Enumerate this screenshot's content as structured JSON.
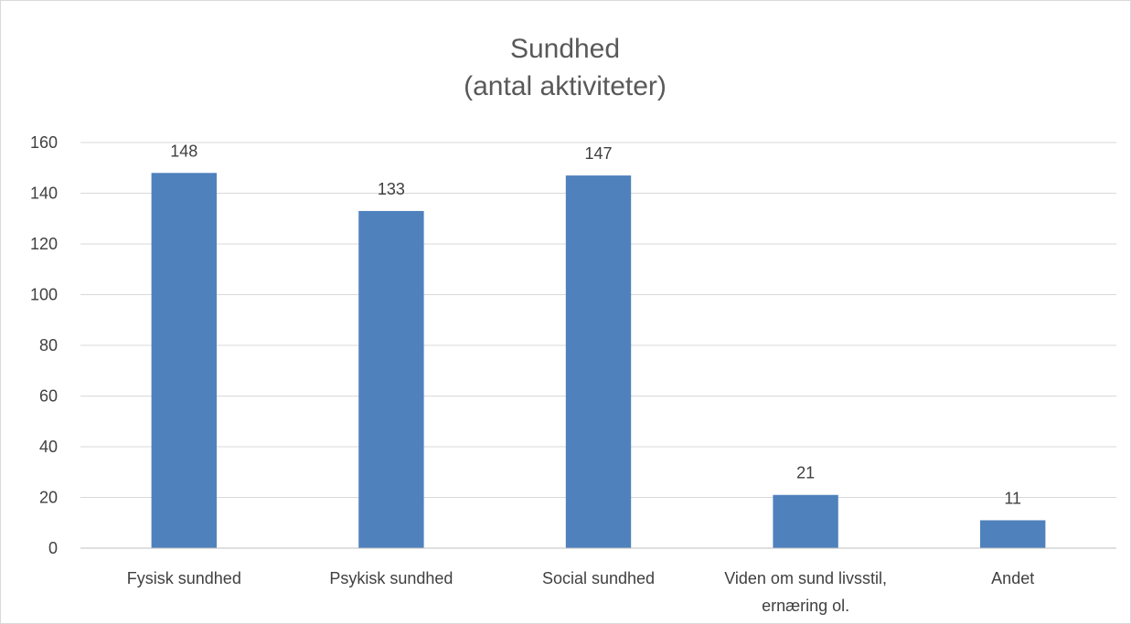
{
  "chart_data": {
    "type": "bar",
    "title_lines": [
      "Sundhed",
      "(antal aktiviteter)"
    ],
    "categories": [
      [
        "Fysisk sundhed"
      ],
      [
        "Psykisk sundhed"
      ],
      [
        "Social sundhed"
      ],
      [
        "Viden om sund livsstil,",
        "ernæring ol."
      ],
      [
        "Andet"
      ]
    ],
    "values": [
      148,
      133,
      147,
      21,
      11
    ],
    "ylim": [
      0,
      160
    ],
    "yticks": [
      0,
      20,
      40,
      60,
      80,
      100,
      120,
      140,
      160
    ],
    "grid": true,
    "legend": false,
    "data_labels": true,
    "bar_color": "#4f81bd"
  }
}
